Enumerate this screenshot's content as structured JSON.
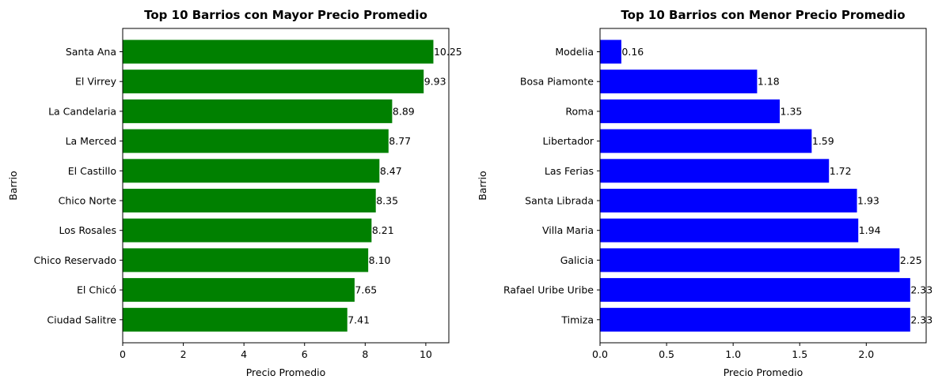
{
  "chart_data": [
    {
      "type": "bar",
      "orientation": "horizontal",
      "title": "Top 10 Barrios con Mayor Precio Promedio",
      "xlabel": "Precio Promedio",
      "ylabel": "Barrio",
      "color": "#008000",
      "xlim": [
        0,
        10.76
      ],
      "xticks": [
        0,
        2,
        4,
        6,
        8,
        10
      ],
      "xtick_labels": [
        "0",
        "2",
        "4",
        "6",
        "8",
        "10"
      ],
      "categories": [
        "Santa Ana",
        "El Virrey",
        "La Candelaria",
        "La Merced",
        "El Castillo",
        "Chico Norte",
        "Los Rosales",
        "Chico Reservado",
        "El Chicó",
        "Ciudad Salitre"
      ],
      "values": [
        10.25,
        9.93,
        8.89,
        8.77,
        8.47,
        8.35,
        8.21,
        8.1,
        7.65,
        7.41
      ],
      "value_labels": [
        "10.25",
        "9.93",
        "8.89",
        "8.77",
        "8.47",
        "8.35",
        "8.21",
        "8.10",
        "7.65",
        "7.41"
      ],
      "grid": false
    },
    {
      "type": "bar",
      "orientation": "horizontal",
      "title": "Top 10 Barrios con Menor Precio Promedio",
      "xlabel": "Precio Promedio",
      "ylabel": "Barrio",
      "color": "#0000ff",
      "xlim": [
        0,
        2.45
      ],
      "xticks": [
        0,
        0.5,
        1,
        1.5,
        2
      ],
      "xtick_labels": [
        "0.0",
        "0.5",
        "1.0",
        "1.5",
        "2.0"
      ],
      "categories": [
        "Modelia",
        "Bosa Piamonte",
        "Roma",
        "Libertador",
        "Las Ferias",
        "Santa Librada",
        "Villa Maria",
        "Galicia",
        "Rafael Uribe Uribe",
        "Timiza"
      ],
      "values": [
        0.16,
        1.18,
        1.35,
        1.59,
        1.72,
        1.93,
        1.94,
        2.25,
        2.33,
        2.33
      ],
      "value_labels": [
        "0.16",
        "1.18",
        "1.35",
        "1.59",
        "1.72",
        "1.93",
        "1.94",
        "2.25",
        "2.33",
        "2.33"
      ],
      "grid": false
    }
  ]
}
